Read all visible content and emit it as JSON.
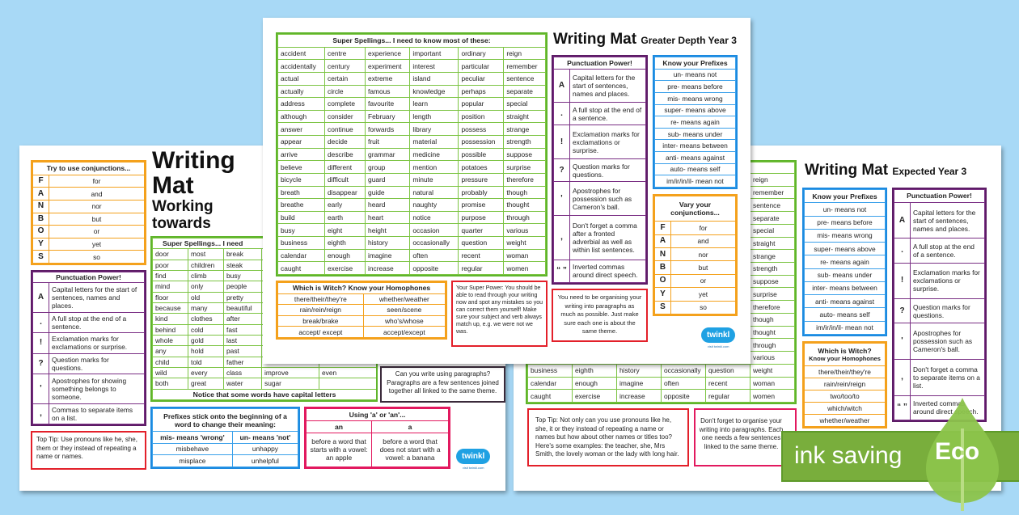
{
  "colors": {
    "background": "#a8d9f6",
    "green": "#5fb52b",
    "orange": "#f4a11c",
    "purple": "#5d1c66",
    "blue": "#1c8ae0",
    "red": "#e3202a",
    "pink": "#e2195f",
    "eco": "#79ae3c"
  },
  "logo": {
    "text": "twinkl",
    "sub": "visit twinkl.com"
  },
  "left_mat": {
    "title": "Writing Mat",
    "subtitle": "Working towards",
    "conjunctions": {
      "heading": "Try to use conjunctions...",
      "rows": [
        [
          "F",
          "for"
        ],
        [
          "A",
          "and"
        ],
        [
          "N",
          "nor"
        ],
        [
          "B",
          "but"
        ],
        [
          "O",
          "or"
        ],
        [
          "Y",
          "yet"
        ],
        [
          "S",
          "so"
        ]
      ]
    },
    "punctuation": {
      "heading": "Punctuation Power!",
      "rows": [
        [
          "A",
          "Capital letters for the start of sentences, names and places."
        ],
        [
          ".",
          "A full stop at the end of a sentence."
        ],
        [
          "!",
          "Exclamation marks for exclamations or surprise."
        ],
        [
          "?",
          "Question marks for questions."
        ],
        [
          "'",
          "Apostrophes for showing something belongs to someone."
        ],
        [
          ",",
          "Commas to separate items on a list."
        ]
      ]
    },
    "top_tip": "Top Tip: Use pronouns like he, she, them or they instead of repeating a name or names.",
    "spellings": {
      "heading": "Super Spellings... I need",
      "rows": [
        [
          "door",
          "most",
          "break",
          "",
          ""
        ],
        [
          "poor",
          "children",
          "steak",
          "",
          ""
        ],
        [
          "find",
          "climb",
          "busy",
          "",
          ""
        ],
        [
          "mind",
          "only",
          "people",
          "",
          ""
        ],
        [
          "floor",
          "old",
          "pretty",
          "",
          ""
        ],
        [
          "because",
          "many",
          "beautiful",
          "",
          ""
        ],
        [
          "kind",
          "clothes",
          "after",
          "",
          ""
        ],
        [
          "behind",
          "cold",
          "fast",
          "",
          ""
        ],
        [
          "whole",
          "gold",
          "last",
          "",
          ""
        ],
        [
          "any",
          "hold",
          "past",
          "",
          ""
        ],
        [
          "child",
          "told",
          "father",
          "",
          ""
        ],
        [
          "wild",
          "every",
          "class",
          "improve",
          "even"
        ],
        [
          "both",
          "great",
          "water",
          "sugar",
          ""
        ]
      ],
      "footer": "Notice that some words have capital letters"
    },
    "prefixes": {
      "heading": "Prefixes stick onto the beginning of a word to change their meaning:",
      "columns": [
        "mis- means 'wrong'",
        "un- means 'not'"
      ],
      "rows": [
        [
          "misbehave",
          "unhappy"
        ],
        [
          "misplace",
          "unhelpful"
        ]
      ]
    },
    "a_an": {
      "heading": "Using 'a' or 'an'...",
      "columns": [
        "an",
        "a"
      ],
      "rows": [
        [
          "before a word that starts with a vowel: an apple",
          "before a word that does not start with a vowel: a banana"
        ]
      ]
    },
    "paragraphs": "Can you write using paragraphs? Paragraphs are a few sentences joined together all linked to the same theme."
  },
  "center_mat": {
    "title": "Writing Mat",
    "subtitle": "Greater Depth Year 3",
    "spellings": {
      "heading": "Super Spellings...  I need to know most of these:",
      "rows": [
        [
          "accident",
          "centre",
          "experience",
          "important",
          "ordinary",
          "reign"
        ],
        [
          "accidentally",
          "century",
          "experiment",
          "interest",
          "particular",
          "remember"
        ],
        [
          "actual",
          "certain",
          "extreme",
          "island",
          "peculiar",
          "sentence"
        ],
        [
          "actually",
          "circle",
          "famous",
          "knowledge",
          "perhaps",
          "separate"
        ],
        [
          "address",
          "complete",
          "favourite",
          "learn",
          "popular",
          "special"
        ],
        [
          "although",
          "consider",
          "February",
          "length",
          "position",
          "straight"
        ],
        [
          "answer",
          "continue",
          "forwards",
          "library",
          "possess",
          "strange"
        ],
        [
          "appear",
          "decide",
          "fruit",
          "material",
          "possession",
          "strength"
        ],
        [
          "arrive",
          "describe",
          "grammar",
          "medicine",
          "possible",
          "suppose"
        ],
        [
          "believe",
          "different",
          "group",
          "mention",
          "potatoes",
          "surprise"
        ],
        [
          "bicycle",
          "difficult",
          "guard",
          "minute",
          "pressure",
          "therefore"
        ],
        [
          "breath",
          "disappear",
          "guide",
          "natural",
          "probably",
          "though"
        ],
        [
          "breathe",
          "early",
          "heard",
          "naughty",
          "promise",
          "thought"
        ],
        [
          "build",
          "earth",
          "heart",
          "notice",
          "purpose",
          "through"
        ],
        [
          "busy",
          "eight",
          "height",
          "occasion",
          "quarter",
          "various"
        ],
        [
          "business",
          "eighth",
          "history",
          "occasionally",
          "question",
          "weight"
        ],
        [
          "calendar",
          "enough",
          "imagine",
          "often",
          "recent",
          "woman"
        ],
        [
          "caught",
          "exercise",
          "increase",
          "opposite",
          "regular",
          "women"
        ]
      ]
    },
    "homophones": {
      "heading": "Which is Witch? Know your Homophones",
      "rows": [
        [
          "there/their/they're",
          "whether/weather"
        ],
        [
          "rain/rein/reign",
          "seen/scene"
        ],
        [
          "break/brake",
          "who's/whose"
        ],
        [
          "accept/ except",
          "accept/except"
        ]
      ]
    },
    "super_power": "Your Super Power: You should be able to read through your writing now and spot any mistakes so you can correct them yourself! Make sure your subject and verb always match up, e.g. we were not we was.",
    "punctuation": {
      "heading": "Punctuation Power!",
      "rows": [
        [
          "A",
          "Capital letters for the start of sentences, names and places."
        ],
        [
          ".",
          "A full stop at the end of a sentence."
        ],
        [
          "!",
          "Exclamation marks for exclamations or surprise."
        ],
        [
          "?",
          "Question marks for questions."
        ],
        [
          "'",
          "Apostrophes for possession such as Cameron's ball."
        ],
        [
          ",",
          "Don't forget a comma after a fronted adverbial as well as within list sentences."
        ],
        [
          "“ ”",
          "Inverted commas around direct speech."
        ]
      ]
    },
    "paragraphs_note": "You need to be organising your writing into paragraphs as much as possible. Just make sure each one is about the same theme.",
    "prefixes": {
      "heading": "Know your Prefixes",
      "items": [
        "un- means not",
        "pre-  means before",
        "mis- means wrong",
        "super- means above",
        "re- means again",
        "sub- means under",
        "inter- means between",
        "anti- means against",
        "auto- means self",
        "im/ir/in/il- mean not"
      ]
    },
    "conjunctions": {
      "heading": "Vary your conjunctions...",
      "rows": [
        [
          "F",
          "for"
        ],
        [
          "A",
          "and"
        ],
        [
          "N",
          "nor"
        ],
        [
          "B",
          "but"
        ],
        [
          "O",
          "or"
        ],
        [
          "Y",
          "yet"
        ],
        [
          "S",
          "so"
        ]
      ]
    }
  },
  "right_mat": {
    "title": "Writing Mat",
    "subtitle": "Expected Year 3",
    "prefixes": {
      "heading": "Know your Prefixes",
      "items": [
        "un- means not",
        "pre-  means before",
        "mis- means wrong",
        "super- means above",
        "re- means again",
        "sub- means under",
        "inter- means between",
        "anti- means against",
        "auto- means self",
        "im/ir/in/il- mean not"
      ]
    },
    "homophones": {
      "heading": "Which is Witch?",
      "subheading": "Know your Homophones",
      "items": [
        "there/their/they're",
        "rain/rein/reign",
        "two/too/to",
        "which/witch",
        "whether/weather"
      ]
    },
    "punctuation": {
      "heading": "Punctuation Power!",
      "rows": [
        [
          "A",
          "Capital letters for the start of sentences, names and places."
        ],
        [
          ".",
          "A full stop at the end of a sentence."
        ],
        [
          "!",
          "Exclamation marks for exclamations or surprise."
        ],
        [
          "?",
          "Question marks for questions."
        ],
        [
          "'",
          "Apostrophes for possession such as Cameron's ball."
        ],
        [
          ",",
          "Don't forget a comma to separate items on a list."
        ],
        [
          "“ ”",
          "Inverted commas around direct speech."
        ]
      ]
    },
    "top_tip": "Top Tip:  Not only can you use pronouns like he, she, it or they instead of repeating a name or names but how about other names or titles too? Here's some examples: the teacher, she, Mrs Smith, the lovely woman or the lady with long hair.",
    "paragraphs": "Don't forget to organise your writing into paragraphs. Each one needs a few sentences linked to the same theme."
  },
  "eco_banner": {
    "label": "ink saving",
    "badge": "Eco"
  }
}
